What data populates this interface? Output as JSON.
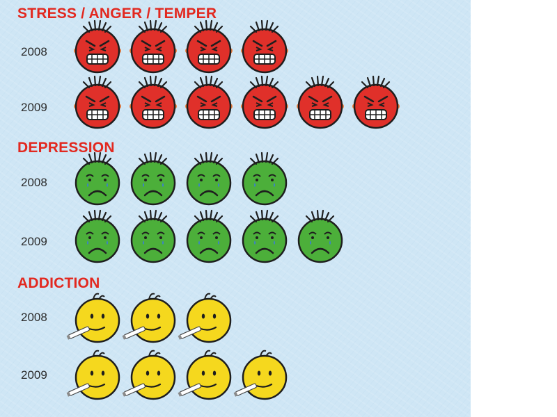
{
  "chart_data": {
    "type": "pictograph",
    "colors": {
      "stress": "#e0302a",
      "depression": "#4caf3a",
      "addiction": "#f5d81e",
      "title": "#e2281f"
    },
    "groups": [
      {
        "title": "STRESS / ANGER / TEMPER",
        "face": "angry-face-icon",
        "color": "#e0302a",
        "rows": [
          {
            "year": "2008",
            "count": 4
          },
          {
            "year": "2009",
            "count": 6
          }
        ]
      },
      {
        "title": "DEPRESSION",
        "face": "sad-face-icon",
        "color": "#4caf3a",
        "rows": [
          {
            "year": "2008",
            "count": 4
          },
          {
            "year": "2009",
            "count": 5
          }
        ]
      },
      {
        "title": "ADDICTION",
        "face": "smoking-face-icon",
        "color": "#f5d81e",
        "rows": [
          {
            "year": "2008",
            "count": 3
          },
          {
            "year": "2009",
            "count": 4
          }
        ]
      }
    ]
  }
}
